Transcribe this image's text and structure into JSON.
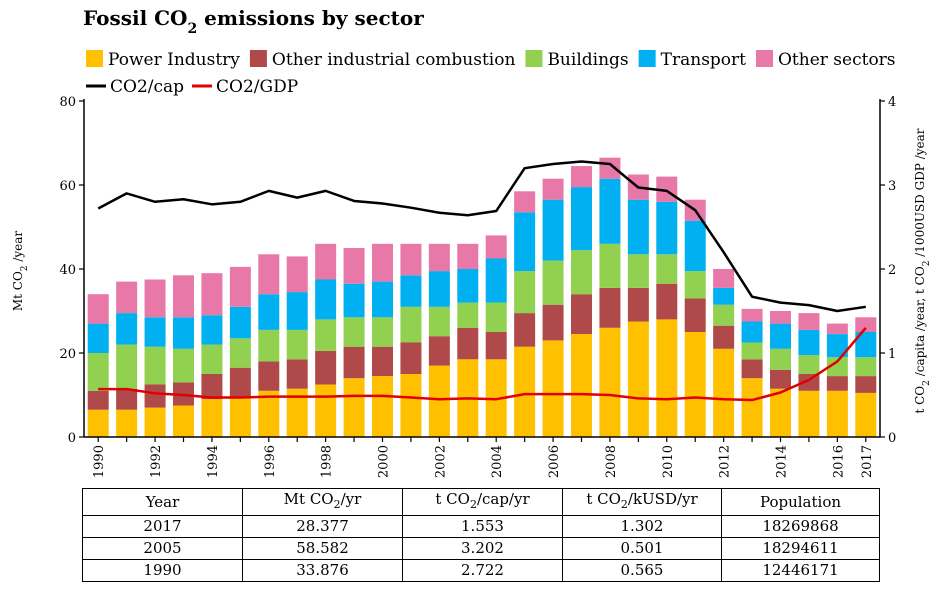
{
  "chart_data": {
    "type": "bar",
    "title": "Fossil CO2 emissions by sector",
    "title_parts": [
      "Fossil CO",
      "2",
      " emissions by sector"
    ],
    "y_label_left_parts": [
      "Mt CO",
      "2",
      " /year"
    ],
    "y_label_right_parts": [
      "t CO",
      "2",
      " /capita /year, t CO",
      "2",
      " /1000USD GDP /year"
    ],
    "ylim_left": [
      0,
      80
    ],
    "ylim_right": [
      0,
      4
    ],
    "yticks_left": [
      "0",
      "20",
      "40",
      "60",
      "80"
    ],
    "yticks_right": [
      "0",
      "1",
      "2",
      "3",
      "4"
    ],
    "x": [
      1990,
      1991,
      1992,
      1993,
      1994,
      1995,
      1996,
      1997,
      1998,
      1999,
      2000,
      2001,
      2002,
      2003,
      2004,
      2005,
      2006,
      2007,
      2008,
      2009,
      2010,
      2011,
      2012,
      2013,
      2014,
      2015,
      2016,
      2017
    ],
    "xtick_labels": [
      "1990",
      "1992",
      "1994",
      "1996",
      "1998",
      "2000",
      "2002",
      "2004",
      "2006",
      "2008",
      "2010",
      "2012",
      "2014",
      "2016",
      "2017"
    ],
    "stack_series": [
      {
        "name": "Power Industry",
        "color": "#ffc000",
        "values": [
          6.5,
          6.5,
          7,
          7.5,
          9,
          9.5,
          11,
          11.5,
          12.5,
          14,
          14.5,
          15,
          17,
          18.5,
          18.5,
          21.5,
          23,
          24.5,
          26,
          27.5,
          28,
          25,
          21,
          14,
          11.5,
          11,
          11,
          10.5
        ]
      },
      {
        "name": "Other industrial combustion",
        "color": "#b04a4a",
        "values": [
          4.5,
          5,
          5.5,
          5.5,
          6,
          7,
          7,
          7,
          8,
          7.5,
          7,
          7.5,
          7,
          7.5,
          6.5,
          8,
          8.5,
          9.5,
          9.5,
          8,
          8.5,
          8,
          5.5,
          4.5,
          4.5,
          4,
          3.5,
          4
        ]
      },
      {
        "name": "Buildings",
        "color": "#92d050",
        "values": [
          9,
          10.5,
          9,
          8,
          7,
          7,
          7.5,
          7,
          7.5,
          7,
          7,
          8.5,
          7,
          6,
          7,
          10,
          10.5,
          10.5,
          10.5,
          8,
          7,
          6.5,
          5,
          4,
          5,
          4.5,
          4.5,
          4.5
        ]
      },
      {
        "name": "Transport",
        "color": "#00b0f0",
        "values": [
          7,
          7.5,
          7,
          7.5,
          7,
          7.5,
          8.5,
          9,
          9.5,
          8,
          8.5,
          7.5,
          8.5,
          8,
          10.5,
          14,
          14.5,
          15,
          15.5,
          13,
          12.5,
          12,
          4,
          5,
          6,
          6,
          5.5,
          6
        ]
      },
      {
        "name": "Other sectors",
        "color": "#e878a8",
        "values": [
          7,
          7.5,
          9,
          10,
          10,
          9.5,
          9.5,
          8.5,
          8.5,
          8.5,
          9,
          7.5,
          6.5,
          6,
          5.5,
          5,
          5,
          5,
          5,
          6,
          6,
          5,
          4.5,
          3,
          3,
          4,
          2.5,
          3.5
        ]
      }
    ],
    "line_series": [
      {
        "name": "CO2/cap",
        "color": "#000000",
        "values": [
          2.72,
          2.9,
          2.8,
          2.83,
          2.77,
          2.8,
          2.93,
          2.85,
          2.93,
          2.81,
          2.78,
          2.73,
          2.67,
          2.64,
          2.69,
          3.2,
          3.25,
          3.28,
          3.25,
          2.97,
          2.93,
          2.7,
          2.2,
          1.67,
          1.6,
          1.57,
          1.5,
          1.55
        ]
      },
      {
        "name": "CO2/GDP",
        "color": "#e00000",
        "values": [
          0.57,
          0.57,
          0.52,
          0.5,
          0.47,
          0.47,
          0.48,
          0.48,
          0.48,
          0.49,
          0.49,
          0.47,
          0.45,
          0.46,
          0.45,
          0.51,
          0.51,
          0.51,
          0.5,
          0.46,
          0.45,
          0.47,
          0.45,
          0.44,
          0.53,
          0.68,
          0.9,
          1.3
        ]
      }
    ],
    "legend_placement": "top-left"
  },
  "table": {
    "headers": [
      [
        "Year"
      ],
      [
        "Mt CO",
        "2",
        "/yr"
      ],
      [
        "t CO",
        "2",
        "/cap/yr"
      ],
      [
        "t CO",
        "2",
        "/kUSD/yr"
      ],
      [
        "Population"
      ]
    ],
    "rows": [
      [
        "2017",
        "28.377",
        "1.553",
        "1.302",
        "18269868"
      ],
      [
        "2005",
        "58.582",
        "3.202",
        "0.501",
        "18294611"
      ],
      [
        "1990",
        "33.876",
        "2.722",
        "0.565",
        "12446171"
      ]
    ]
  }
}
